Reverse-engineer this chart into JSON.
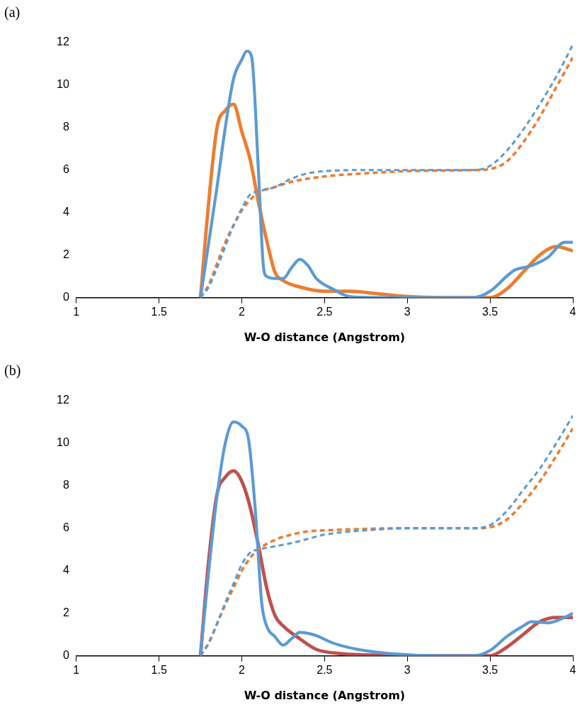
{
  "chart_data": [
    {
      "type": "line",
      "title": "(a)",
      "xlabel": "W-O distance (Angstrom)",
      "xlim": [
        1,
        4
      ],
      "xticks": [
        1,
        1.5,
        2,
        2.5,
        3,
        3.5,
        4
      ],
      "ylim": [
        0,
        12
      ],
      "yticks": [
        0,
        2,
        4,
        6,
        8,
        10,
        12
      ],
      "grid": false,
      "legend": false,
      "marker": "none",
      "series": [
        {
          "color": "#ed7d31",
          "line_style": "solid",
          "x": [
            1.75,
            1.8,
            1.85,
            1.9,
            1.95,
            2.0,
            2.05,
            2.1,
            2.15,
            2.2,
            2.25,
            2.35,
            2.5,
            2.65,
            2.8,
            3.0,
            3.2,
            3.5,
            3.6,
            3.7,
            3.8,
            3.9,
            4.0
          ],
          "values": [
            0,
            4.5,
            8,
            8.8,
            9.1,
            7.8,
            6.5,
            4.5,
            2.7,
            1.2,
            0.8,
            0.5,
            0.3,
            0.3,
            0.2,
            0.05,
            0,
            0,
            0.4,
            1.2,
            2.0,
            2.4,
            2.2
          ]
        },
        {
          "color": "#5b9bd5",
          "line_style": "solid",
          "x": [
            1.75,
            1.85,
            1.9,
            1.95,
            2.0,
            2.03,
            2.06,
            2.1,
            2.13,
            2.15,
            2.2,
            2.25,
            2.3,
            2.35,
            2.4,
            2.45,
            2.55,
            2.65,
            2.8,
            3.4,
            3.5,
            3.6,
            3.65,
            3.75,
            3.85,
            3.95,
            4.0
          ],
          "values": [
            0,
            5.2,
            8,
            10.3,
            11.2,
            11.6,
            11.3,
            6,
            1.5,
            1.0,
            0.9,
            0.9,
            1.4,
            1.8,
            1.5,
            0.9,
            0.4,
            0.05,
            0,
            0,
            0.3,
            1.0,
            1.3,
            1.5,
            1.9,
            2.6,
            2.6
          ]
        },
        {
          "color": "#ed7d31",
          "line_style": "dashed",
          "x": [
            1.75,
            1.8,
            1.85,
            1.9,
            1.95,
            2.0,
            2.05,
            2.1,
            2.2,
            2.3,
            2.5,
            2.75,
            3.0,
            3.4,
            3.5,
            3.6,
            3.7,
            3.8,
            3.9,
            4.0
          ],
          "values": [
            0,
            0.6,
            1.6,
            2.6,
            3.4,
            4.1,
            4.6,
            4.95,
            5.2,
            5.45,
            5.7,
            5.85,
            5.95,
            6.0,
            6.05,
            6.4,
            7.3,
            8.5,
            9.9,
            11.3
          ]
        },
        {
          "color": "#5b9bd5",
          "line_style": "dashed",
          "x": [
            1.75,
            1.8,
            1.85,
            1.9,
            1.95,
            2.0,
            2.05,
            2.1,
            2.2,
            2.3,
            2.4,
            2.5,
            2.75,
            3.4,
            3.5,
            3.6,
            3.7,
            3.8,
            3.9,
            4.0
          ],
          "values": [
            0,
            0.5,
            1.4,
            2.4,
            3.4,
            4.2,
            4.85,
            5.0,
            5.2,
            5.6,
            5.85,
            5.95,
            6.0,
            6.0,
            6.2,
            6.9,
            7.9,
            9.1,
            10.4,
            11.9
          ]
        }
      ]
    },
    {
      "type": "line",
      "title": "(b)",
      "xlabel": "W-O distance (Angstrom)",
      "xlim": [
        1,
        4
      ],
      "xticks": [
        1,
        1.5,
        2,
        2.5,
        3,
        3.5,
        4
      ],
      "ylim": [
        0,
        12
      ],
      "yticks": [
        0,
        2,
        4,
        6,
        8,
        10,
        12
      ],
      "grid": false,
      "legend": false,
      "marker": "none",
      "series": [
        {
          "color": "#c0504d",
          "line_style": "solid",
          "x": [
            1.75,
            1.8,
            1.85,
            1.9,
            1.95,
            2.0,
            2.05,
            2.1,
            2.15,
            2.2,
            2.25,
            2.35,
            2.45,
            2.6,
            2.8,
            3.0,
            3.5,
            3.6,
            3.7,
            3.8,
            3.9,
            4.0
          ],
          "values": [
            0,
            4.5,
            7.6,
            8.4,
            8.7,
            8.2,
            7.0,
            5.2,
            3.2,
            1.9,
            1.4,
            0.8,
            0.3,
            0.1,
            0.03,
            0,
            0,
            0.4,
            1.0,
            1.6,
            1.8,
            1.8
          ]
        },
        {
          "color": "#5b9bd5",
          "line_style": "solid",
          "x": [
            1.75,
            1.8,
            1.85,
            1.9,
            1.95,
            2.0,
            2.04,
            2.08,
            2.12,
            2.15,
            2.2,
            2.25,
            2.3,
            2.35,
            2.45,
            2.55,
            2.7,
            2.9,
            3.2,
            3.4,
            3.5,
            3.6,
            3.7,
            3.75,
            3.85,
            3.95,
            4.0
          ],
          "values": [
            0,
            4,
            7.5,
            10,
            11.0,
            10.8,
            10.2,
            7,
            2.5,
            1.4,
            0.9,
            0.5,
            0.8,
            1.1,
            0.95,
            0.6,
            0.3,
            0.1,
            0,
            0,
            0.25,
            0.9,
            1.4,
            1.6,
            1.55,
            1.8,
            2.0
          ]
        },
        {
          "color": "#ed7d31",
          "line_style": "dashed",
          "x": [
            1.75,
            1.8,
            1.85,
            1.9,
            1.95,
            2.0,
            2.05,
            2.1,
            2.2,
            2.3,
            2.4,
            2.5,
            2.75,
            3.0,
            3.4,
            3.5,
            3.6,
            3.7,
            3.8,
            3.9,
            4.0
          ],
          "values": [
            0,
            0.6,
            1.5,
            2.4,
            3.2,
            4.0,
            4.6,
            5.0,
            5.45,
            5.7,
            5.85,
            5.9,
            5.97,
            6.0,
            6.0,
            6.05,
            6.4,
            7.2,
            8.2,
            9.4,
            10.7
          ]
        },
        {
          "color": "#5b9bd5",
          "line_style": "dashed",
          "x": [
            1.75,
            1.8,
            1.85,
            1.9,
            1.95,
            2.0,
            2.05,
            2.1,
            2.2,
            2.3,
            2.4,
            2.5,
            2.75,
            3.0,
            3.4,
            3.5,
            3.6,
            3.7,
            3.8,
            3.9,
            4.0
          ],
          "values": [
            0,
            0.6,
            1.5,
            2.5,
            3.4,
            4.3,
            4.85,
            5.0,
            5.15,
            5.3,
            5.5,
            5.7,
            5.9,
            6.0,
            6.0,
            6.15,
            6.8,
            7.8,
            8.8,
            10.0,
            11.3
          ]
        }
      ]
    }
  ]
}
